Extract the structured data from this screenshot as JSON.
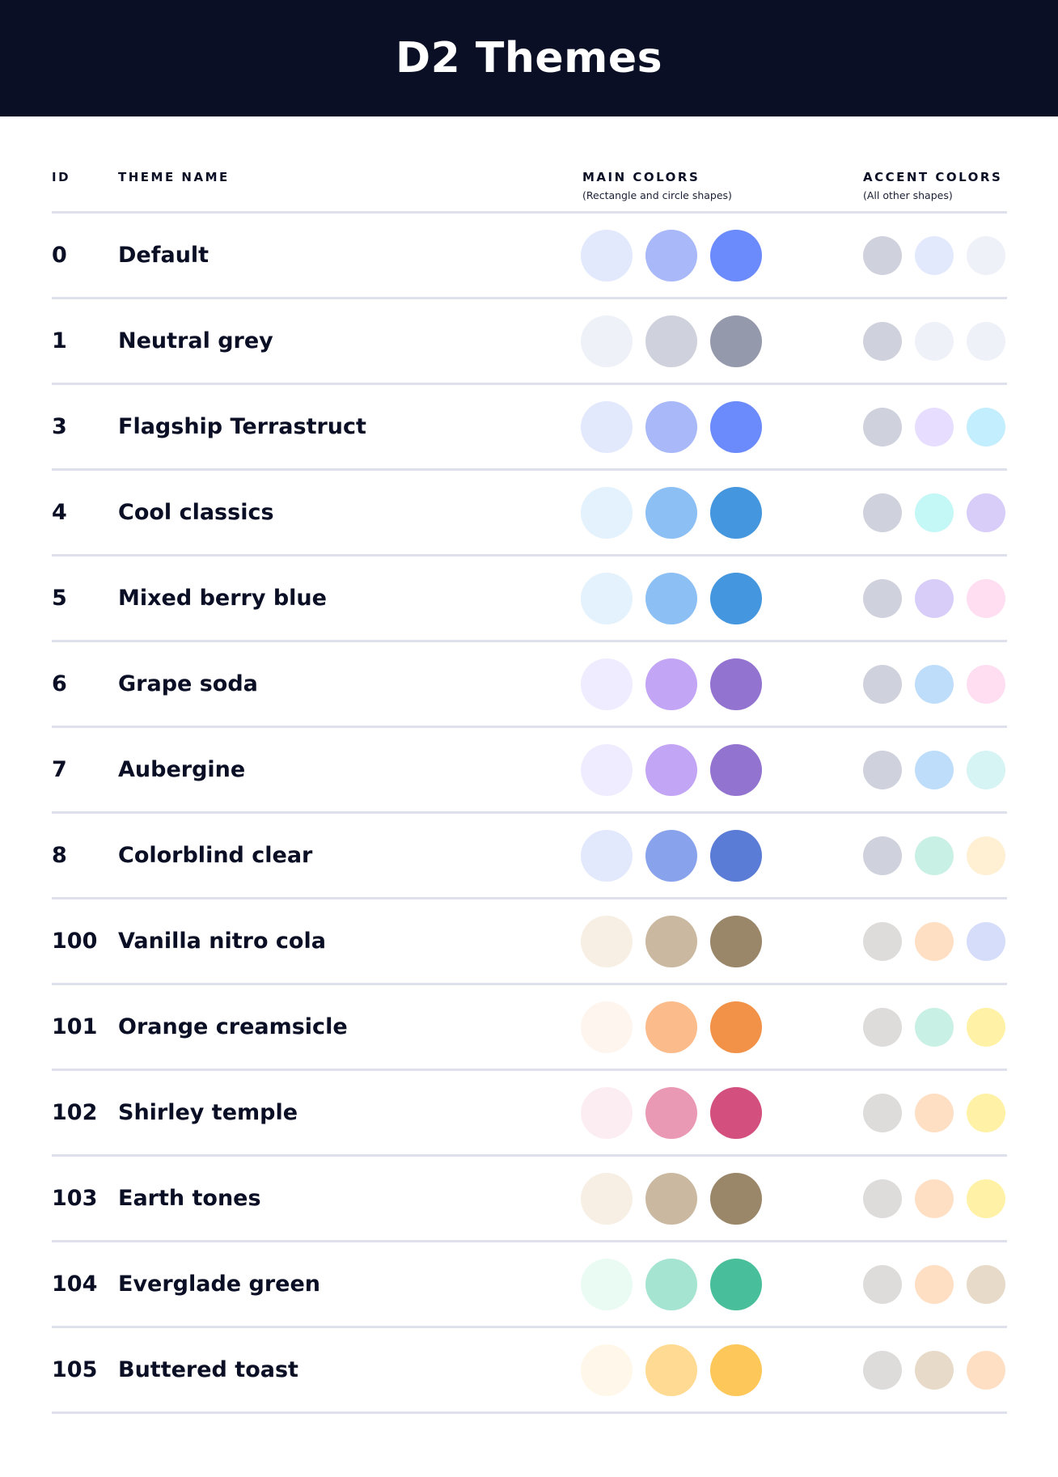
{
  "title": "D2 Themes",
  "columns": {
    "id": "ID",
    "name": "THEME NAME",
    "main": "MAIN COLORS",
    "main_sub": "(Rectangle and circle shapes)",
    "accent": "ACCENT COLORS",
    "accent_sub": "(All other shapes)"
  },
  "themes": [
    {
      "id": "0",
      "name": "Default",
      "main": [
        "#E3E9FD",
        "#A8B8F8",
        "#6B8AFB"
      ],
      "accent": [
        "#CFD2DD",
        "#E3E9FD",
        "#EEF1F8"
      ]
    },
    {
      "id": "1",
      "name": "Neutral grey",
      "main": [
        "#EEF1F8",
        "#CFD2DD",
        "#9499AB"
      ],
      "accent": [
        "#CFD2DD",
        "#EEF1F8",
        "#EEF1F8"
      ]
    },
    {
      "id": "3",
      "name": "Flagship Terrastruct",
      "main": [
        "#E3E9FD",
        "#A8B8F8",
        "#6B8AFB"
      ],
      "accent": [
        "#CFD2DD",
        "#E7DEFF",
        "#C3EEFE"
      ]
    },
    {
      "id": "4",
      "name": "Cool classics",
      "main": [
        "#E3F2FD",
        "#8CC0F4",
        "#4496DE"
      ],
      "accent": [
        "#CFD2DD",
        "#C3F8F6",
        "#D8CDF9"
      ]
    },
    {
      "id": "5",
      "name": "Mixed berry blue",
      "main": [
        "#E3F2FD",
        "#8CC0F4",
        "#4496DE"
      ],
      "accent": [
        "#CFD2DD",
        "#D8CDF9",
        "#FFDEF1"
      ]
    },
    {
      "id": "6",
      "name": "Grape soda",
      "main": [
        "#F0ECFF",
        "#C3A5F5",
        "#9273D0"
      ],
      "accent": [
        "#CFD2DD",
        "#BDDDFB",
        "#FFDEF1"
      ]
    },
    {
      "id": "7",
      "name": "Aubergine",
      "main": [
        "#F0ECFF",
        "#C3A5F5",
        "#9273D0"
      ],
      "accent": [
        "#CFD2DD",
        "#BDDDFB",
        "#D6F4F3"
      ]
    },
    {
      "id": "8",
      "name": "Colorblind clear",
      "main": [
        "#E3E9FD",
        "#88A3EC",
        "#5A7CD6"
      ],
      "accent": [
        "#CFD2DD",
        "#C9F0E4",
        "#FFF0D4"
      ]
    },
    {
      "id": "100",
      "name": "Vanilla nitro cola",
      "main": [
        "#F7EFE4",
        "#CAB9A0",
        "#9A8669"
      ],
      "accent": [
        "#DEDCDA",
        "#FFDFC4",
        "#D5DDFB"
      ]
    },
    {
      "id": "101",
      "name": "Orange creamsicle",
      "main": [
        "#FEF5EE",
        "#FBBB8A",
        "#F29249"
      ],
      "accent": [
        "#DEDCDA",
        "#C9F0E4",
        "#FFF1A5"
      ]
    },
    {
      "id": "102",
      "name": "Shirley temple",
      "main": [
        "#FCEDF2",
        "#EA99B5",
        "#D34F7E"
      ],
      "accent": [
        "#DEDCDA",
        "#FFDFC4",
        "#FFF1A5"
      ]
    },
    {
      "id": "103",
      "name": "Earth tones",
      "main": [
        "#F7EFE4",
        "#CAB9A0",
        "#9A8669"
      ],
      "accent": [
        "#DEDCDA",
        "#FFDFC4",
        "#FFF1A5"
      ]
    },
    {
      "id": "104",
      "name": "Everglade green",
      "main": [
        "#E9FBF3",
        "#A5E4D1",
        "#48BF9A"
      ],
      "accent": [
        "#DEDCDA",
        "#FFDFC4",
        "#E7DAC8"
      ]
    },
    {
      "id": "105",
      "name": "Buttered toast",
      "main": [
        "#FFF8EA",
        "#FFDA92",
        "#FDC75A"
      ],
      "accent": [
        "#DEDCDA",
        "#E7DAC8",
        "#FFDFC4"
      ]
    }
  ]
}
